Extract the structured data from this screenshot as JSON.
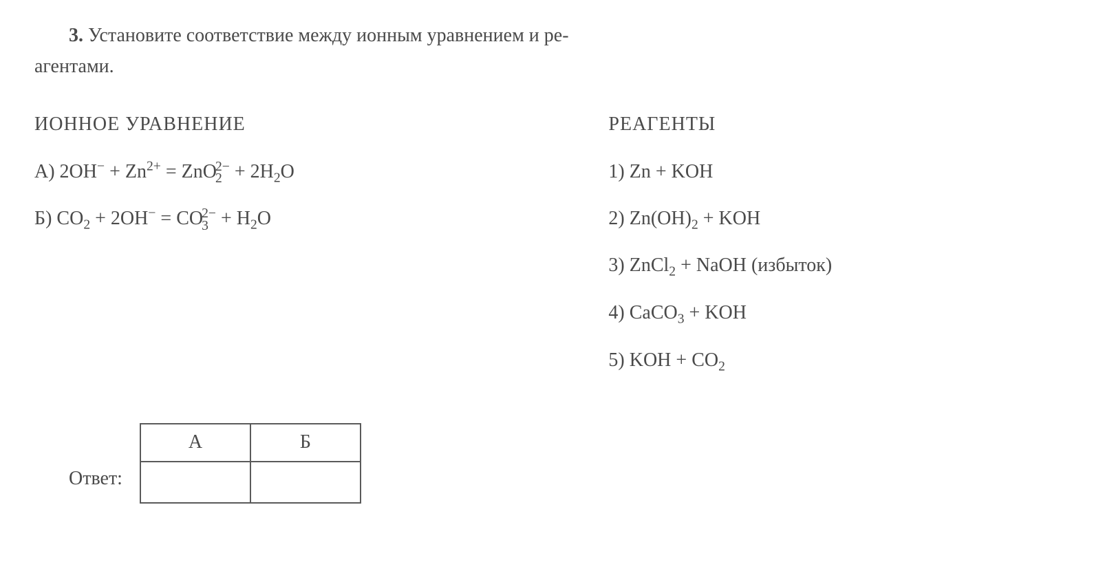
{
  "problem": {
    "number": "3.",
    "text_part1": "Установите соответствие между ионным уравнением и ре-",
    "text_part2": "агентами."
  },
  "left_column": {
    "header": "ИОННОЕ УРАВНЕНИЕ",
    "equations": [
      {
        "label": "А) ",
        "content": "2OH⁻ + Zn²⁺ = ZnO₂²⁻ + 2H₂O"
      },
      {
        "label": "Б) ",
        "content": "CO₂ + 2OH⁻ = CO₃²⁻ + H₂O"
      }
    ]
  },
  "right_column": {
    "header": "РЕАГЕНТЫ",
    "reagents": [
      {
        "num": "1) ",
        "content": "Zn + KOH"
      },
      {
        "num": "2) ",
        "content": "Zn(OH)₂ + KOH"
      },
      {
        "num": "3) ",
        "content": "ZnCl₂ + NaOH (избыток)"
      },
      {
        "num": "4) ",
        "content": "CaCO₃ + KOH"
      },
      {
        "num": "5) ",
        "content": "KOH + CO₂"
      }
    ]
  },
  "answer": {
    "label": "Ответ:",
    "columns": [
      "А",
      "Б"
    ]
  },
  "styles": {
    "background_color": "#ffffff",
    "text_color": "#4a4a4a",
    "border_color": "#5a5a5a",
    "font_family": "Georgia, Times New Roman, serif",
    "base_fontsize": 28,
    "table_cell_width": 160,
    "table_header_height": 55,
    "table_blank_height": 60
  }
}
